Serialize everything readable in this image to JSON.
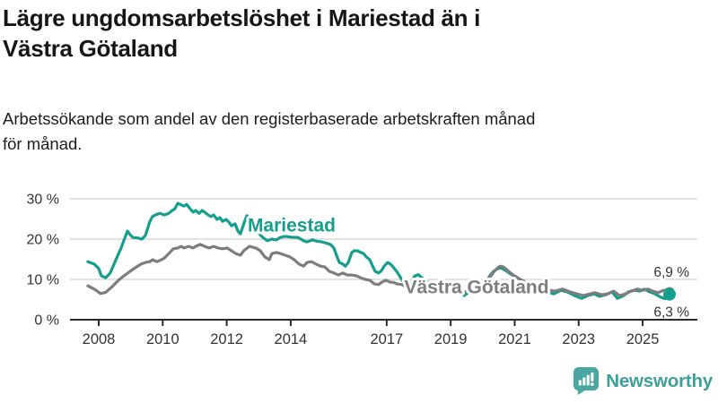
{
  "header": {
    "title": "Lägre ungdomsarbetslöshet i Mariestad än i Västra Götaland",
    "subtitle": "Arbetssökande som andel av den registerbaserade arbetskraften månad för månad."
  },
  "footer": {
    "brand": "Newsworthy",
    "logo_icon": "bar-chart-speech-bubble-icon",
    "brand_color": "#3d9f9a"
  },
  "chart_data": {
    "type": "line",
    "unit": "%",
    "grid": "horizontal",
    "legend": "inline-labels",
    "xlim": [
      2007.1,
      2026.7
    ],
    "ylim": [
      0,
      30
    ],
    "x_ticks": [
      2008,
      2010,
      2012,
      2014,
      2017,
      2019,
      2021,
      2023,
      2025
    ],
    "y_ticks": [
      {
        "value": 0,
        "label": "0 %"
      },
      {
        "value": 10,
        "label": "10 %"
      },
      {
        "value": 20,
        "label": "20 %"
      },
      {
        "value": 30,
        "label": "30 %"
      }
    ],
    "series": [
      {
        "name": "Mariestad",
        "color": "#159e8e",
        "end_label": "6,3 %",
        "end_value": 6.3,
        "points": [
          [
            2007.66,
            14.4
          ],
          [
            2007.86,
            13.8
          ],
          [
            2008.0,
            12.7
          ],
          [
            2008.08,
            10.9
          ],
          [
            2008.22,
            10.4
          ],
          [
            2008.36,
            11.6
          ],
          [
            2008.48,
            13.8
          ],
          [
            2008.62,
            16.4
          ],
          [
            2008.7,
            17.8
          ],
          [
            2008.79,
            19.8
          ],
          [
            2008.9,
            22.0
          ],
          [
            2008.98,
            21.1
          ],
          [
            2009.07,
            20.4
          ],
          [
            2009.21,
            20.3
          ],
          [
            2009.35,
            20.0
          ],
          [
            2009.46,
            20.9
          ],
          [
            2009.6,
            24.4
          ],
          [
            2009.68,
            25.6
          ],
          [
            2009.77,
            26.0
          ],
          [
            2009.91,
            26.4
          ],
          [
            2010.05,
            26.0
          ],
          [
            2010.19,
            26.4
          ],
          [
            2010.3,
            27.1
          ],
          [
            2010.38,
            27.5
          ],
          [
            2010.47,
            28.9
          ],
          [
            2010.58,
            28.5
          ],
          [
            2010.66,
            28.2
          ],
          [
            2010.75,
            28.6
          ],
          [
            2010.86,
            27.5
          ],
          [
            2010.95,
            26.7
          ],
          [
            2011.03,
            27.1
          ],
          [
            2011.14,
            26.4
          ],
          [
            2011.23,
            27.1
          ],
          [
            2011.31,
            26.7
          ],
          [
            2011.42,
            26.0
          ],
          [
            2011.51,
            25.6
          ],
          [
            2011.59,
            26.0
          ],
          [
            2011.7,
            24.9
          ],
          [
            2011.79,
            25.3
          ],
          [
            2011.87,
            24.4
          ],
          [
            2011.98,
            24.9
          ],
          [
            2012.07,
            24.2
          ],
          [
            2012.15,
            23.3
          ],
          [
            2012.26,
            23.8
          ],
          [
            2012.35,
            22.0
          ],
          [
            2012.43,
            21.3
          ],
          [
            2012.54,
            24.0
          ],
          [
            2012.63,
            25.8
          ],
          [
            2012.71,
            25.3
          ],
          [
            2012.83,
            24.3
          ],
          [
            2012.94,
            22.5
          ],
          [
            2013.05,
            21.0
          ],
          [
            2013.13,
            20.4
          ],
          [
            2013.27,
            19.6
          ],
          [
            2013.41,
            20.0
          ],
          [
            2013.55,
            19.8
          ],
          [
            2013.67,
            20.4
          ],
          [
            2013.83,
            20.7
          ],
          [
            2014.0,
            20.5
          ],
          [
            2014.23,
            20.4
          ],
          [
            2014.4,
            19.6
          ],
          [
            2014.51,
            19.3
          ],
          [
            2014.68,
            19.8
          ],
          [
            2014.82,
            19.5
          ],
          [
            2014.96,
            19.3
          ],
          [
            2015.07,
            19.1
          ],
          [
            2015.15,
            18.9
          ],
          [
            2015.24,
            18.7
          ],
          [
            2015.35,
            17.8
          ],
          [
            2015.43,
            16.0
          ],
          [
            2015.52,
            14.2
          ],
          [
            2015.63,
            13.8
          ],
          [
            2015.71,
            13.3
          ],
          [
            2015.8,
            14.2
          ],
          [
            2015.91,
            16.7
          ],
          [
            2015.99,
            17.1
          ],
          [
            2016.08,
            17.1
          ],
          [
            2016.19,
            16.7
          ],
          [
            2016.28,
            16.4
          ],
          [
            2016.36,
            15.6
          ],
          [
            2016.47,
            14.9
          ],
          [
            2016.56,
            13.3
          ],
          [
            2016.64,
            12.0
          ],
          [
            2016.75,
            11.6
          ],
          [
            2016.84,
            12.2
          ],
          [
            2016.92,
            13.3
          ],
          [
            2017.03,
            14.2
          ],
          [
            2017.12,
            13.8
          ],
          [
            2017.2,
            13.1
          ],
          [
            2017.31,
            12.0
          ],
          [
            2017.4,
            10.9
          ],
          [
            2017.48,
            9.8
          ],
          [
            2017.59,
            8.7
          ],
          [
            2017.68,
            8.0
          ],
          [
            2017.79,
            9.5
          ],
          [
            2017.87,
            10.8
          ],
          [
            2017.99,
            11.2
          ],
          [
            2018.1,
            10.4
          ],
          [
            2018.24,
            9.6
          ],
          [
            2018.38,
            9.0
          ],
          [
            2018.52,
            8.4
          ],
          [
            2018.66,
            8.8
          ],
          [
            2018.8,
            8.2
          ],
          [
            2018.94,
            7.6
          ],
          [
            2019.08,
            7.9
          ],
          [
            2019.22,
            7.2
          ],
          [
            2019.33,
            6.5
          ],
          [
            2019.42,
            6.0
          ],
          [
            2019.53,
            6.6
          ],
          [
            2019.64,
            7.3
          ],
          [
            2019.78,
            7.8
          ],
          [
            2019.89,
            7.4
          ],
          [
            2020.01,
            8.0
          ],
          [
            2020.12,
            9.5
          ],
          [
            2020.23,
            11.0
          ],
          [
            2020.34,
            12.0
          ],
          [
            2020.45,
            12.6
          ],
          [
            2020.57,
            12.9
          ],
          [
            2020.68,
            12.4
          ],
          [
            2020.79,
            11.8
          ],
          [
            2020.9,
            11.2
          ],
          [
            2021.01,
            10.8
          ],
          [
            2021.13,
            10.2
          ],
          [
            2021.24,
            9.6
          ],
          [
            2021.35,
            9.0
          ],
          [
            2021.46,
            8.6
          ],
          [
            2021.58,
            8.2
          ],
          [
            2021.69,
            7.8
          ],
          [
            2021.8,
            7.4
          ],
          [
            2021.91,
            7.2
          ],
          [
            2022.03,
            6.9
          ],
          [
            2022.14,
            6.6
          ],
          [
            2022.22,
            6.4
          ],
          [
            2022.45,
            7.3
          ],
          [
            2022.64,
            6.9
          ],
          [
            2022.87,
            6.0
          ],
          [
            2023.09,
            5.3
          ],
          [
            2023.29,
            6.0
          ],
          [
            2023.48,
            6.4
          ],
          [
            2023.65,
            5.8
          ],
          [
            2023.85,
            6.2
          ],
          [
            2024.04,
            6.9
          ],
          [
            2024.21,
            5.3
          ],
          [
            2024.41,
            6.0
          ],
          [
            2024.55,
            6.9
          ],
          [
            2024.75,
            7.3
          ],
          [
            2024.91,
            7.1
          ],
          [
            2025.05,
            7.6
          ],
          [
            2025.22,
            6.9
          ],
          [
            2025.39,
            6.4
          ],
          [
            2025.56,
            5.6
          ],
          [
            2025.7,
            5.2
          ],
          [
            2025.84,
            6.3
          ]
        ]
      },
      {
        "name": "Västra Götaland",
        "color": "#7d7d7d",
        "end_label": "6,9 %",
        "end_value": 6.9,
        "points": [
          [
            2007.66,
            8.4
          ],
          [
            2007.86,
            7.6
          ],
          [
            2008.06,
            6.5
          ],
          [
            2008.22,
            6.8
          ],
          [
            2008.42,
            8.2
          ],
          [
            2008.62,
            9.8
          ],
          [
            2008.79,
            10.9
          ],
          [
            2008.98,
            12.0
          ],
          [
            2009.18,
            13.1
          ],
          [
            2009.32,
            13.8
          ],
          [
            2009.46,
            14.2
          ],
          [
            2009.6,
            14.4
          ],
          [
            2009.68,
            14.9
          ],
          [
            2009.82,
            14.4
          ],
          [
            2009.96,
            14.9
          ],
          [
            2010.05,
            15.3
          ],
          [
            2010.19,
            16.4
          ],
          [
            2010.33,
            17.6
          ],
          [
            2010.47,
            17.8
          ],
          [
            2010.58,
            18.2
          ],
          [
            2010.66,
            17.8
          ],
          [
            2010.81,
            18.2
          ],
          [
            2010.95,
            17.8
          ],
          [
            2011.03,
            18.2
          ],
          [
            2011.17,
            18.7
          ],
          [
            2011.31,
            18.2
          ],
          [
            2011.45,
            17.8
          ],
          [
            2011.59,
            18.2
          ],
          [
            2011.73,
            17.8
          ],
          [
            2011.87,
            17.6
          ],
          [
            2012.01,
            17.8
          ],
          [
            2012.15,
            17.1
          ],
          [
            2012.29,
            16.4
          ],
          [
            2012.43,
            16.0
          ],
          [
            2012.54,
            17.2
          ],
          [
            2012.71,
            18.2
          ],
          [
            2012.91,
            17.8
          ],
          [
            2013.05,
            17.1
          ],
          [
            2013.19,
            15.6
          ],
          [
            2013.33,
            14.9
          ],
          [
            2013.41,
            16.4
          ],
          [
            2013.55,
            16.7
          ],
          [
            2013.69,
            16.4
          ],
          [
            2013.83,
            16.0
          ],
          [
            2013.97,
            15.6
          ],
          [
            2014.11,
            14.9
          ],
          [
            2014.26,
            13.8
          ],
          [
            2014.4,
            13.3
          ],
          [
            2014.51,
            14.2
          ],
          [
            2014.65,
            14.4
          ],
          [
            2014.79,
            13.8
          ],
          [
            2014.93,
            13.3
          ],
          [
            2015.07,
            13.1
          ],
          [
            2015.21,
            12.0
          ],
          [
            2015.35,
            11.6
          ],
          [
            2015.49,
            11.1
          ],
          [
            2015.63,
            11.6
          ],
          [
            2015.77,
            11.1
          ],
          [
            2015.91,
            11.1
          ],
          [
            2016.05,
            10.9
          ],
          [
            2016.19,
            10.4
          ],
          [
            2016.33,
            10.0
          ],
          [
            2016.47,
            9.8
          ],
          [
            2016.61,
            8.9
          ],
          [
            2016.75,
            8.7
          ],
          [
            2016.84,
            9.3
          ],
          [
            2016.98,
            9.8
          ],
          [
            2017.12,
            9.3
          ],
          [
            2017.2,
            9.3
          ],
          [
            2017.31,
            8.9
          ],
          [
            2017.48,
            8.7
          ],
          [
            2017.59,
            8.2
          ],
          [
            2017.73,
            8.4
          ],
          [
            2017.87,
            8.6
          ],
          [
            2018.04,
            8.2
          ],
          [
            2018.21,
            7.9
          ],
          [
            2018.38,
            7.6
          ],
          [
            2018.55,
            7.9
          ],
          [
            2018.71,
            7.5
          ],
          [
            2018.88,
            7.3
          ],
          [
            2019.05,
            7.5
          ],
          [
            2019.22,
            7.2
          ],
          [
            2019.39,
            6.9
          ],
          [
            2019.56,
            7.1
          ],
          [
            2019.72,
            7.3
          ],
          [
            2019.89,
            7.6
          ],
          [
            2020.06,
            8.4
          ],
          [
            2020.2,
            10.2
          ],
          [
            2020.34,
            11.8
          ],
          [
            2020.45,
            12.7
          ],
          [
            2020.54,
            13.3
          ],
          [
            2020.65,
            13.1
          ],
          [
            2020.76,
            12.4
          ],
          [
            2020.87,
            11.6
          ],
          [
            2020.99,
            10.9
          ],
          [
            2021.13,
            10.2
          ],
          [
            2021.27,
            9.6
          ],
          [
            2021.41,
            9.1
          ],
          [
            2021.55,
            8.7
          ],
          [
            2021.69,
            8.2
          ],
          [
            2021.83,
            7.9
          ],
          [
            2021.97,
            7.6
          ],
          [
            2022.11,
            7.3
          ],
          [
            2022.25,
            7.1
          ],
          [
            2022.5,
            7.6
          ],
          [
            2022.73,
            6.9
          ],
          [
            2022.95,
            6.4
          ],
          [
            2023.15,
            6.0
          ],
          [
            2023.35,
            6.4
          ],
          [
            2023.51,
            6.7
          ],
          [
            2023.71,
            6.2
          ],
          [
            2023.91,
            6.4
          ],
          [
            2024.1,
            7.1
          ],
          [
            2024.27,
            6.0
          ],
          [
            2024.47,
            6.4
          ],
          [
            2024.63,
            7.1
          ],
          [
            2024.83,
            7.6
          ],
          [
            2025.0,
            7.3
          ],
          [
            2025.17,
            7.6
          ],
          [
            2025.31,
            7.1
          ],
          [
            2025.48,
            6.7
          ],
          [
            2025.65,
            7.3
          ],
          [
            2025.79,
            7.4
          ],
          [
            2025.84,
            6.9
          ]
        ]
      }
    ]
  }
}
